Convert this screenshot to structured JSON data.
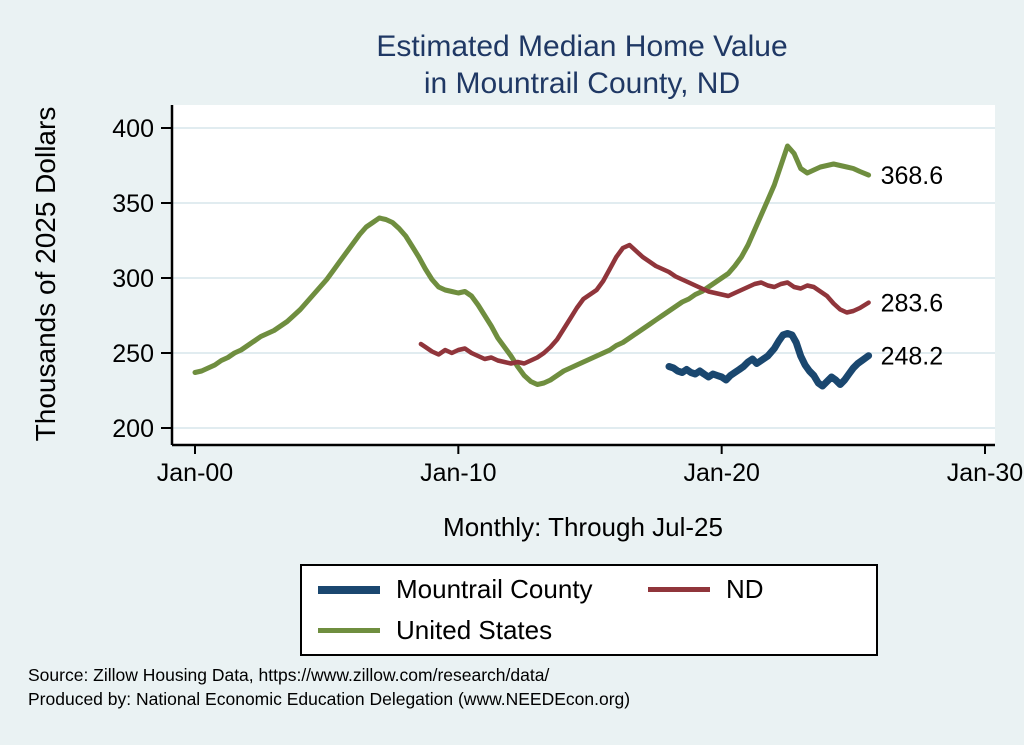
{
  "title": {
    "line1": "Estimated Median Home Value",
    "line2": "in Mountrail County, ND"
  },
  "subtitle": "Monthly: Through Jul-25",
  "y_axis_label": "Thousands of 2025 Dollars",
  "end_labels": {
    "united_states": "368.6",
    "nd": "283.6",
    "mountrail_county": "248.2"
  },
  "legend": {
    "items": [
      {
        "label": "Mountrail County",
        "color": "#1a476f",
        "swatch_height": 8
      },
      {
        "label": "ND",
        "color": "#90353b",
        "swatch_height": 5
      },
      {
        "label": "United States",
        "color": "#6f8e3f",
        "swatch_height": 5
      }
    ]
  },
  "notes": {
    "line1": "Source: Zillow Housing Data, https://www.zillow.com/research/data/",
    "line2": "Produced by: National Economic Education Delegation (www.NEEDEcon.org)"
  },
  "colors": {
    "background": "#eaf2f3",
    "plot_background": "#ffffff",
    "gridline": "#cfe0e8",
    "axis": "#000000",
    "title": "#1f3864",
    "mountrail_county": "#1a476f",
    "nd": "#90353b",
    "united_states": "#6f8e3f"
  },
  "chart_data": {
    "type": "line",
    "title": "Estimated Median Home Value in Mountrail County, ND",
    "subtitle": "Monthly: Through Jul-25",
    "xlabel": "",
    "ylabel": "Thousands of 2025 Dollars",
    "xlim": [
      2000,
      2030
    ],
    "ylim": [
      200,
      400
    ],
    "xticks": [
      2000,
      2010,
      2020,
      2030
    ],
    "xtick_labels": [
      "Jan-00",
      "Jan-10",
      "Jan-20",
      "Jan-30"
    ],
    "yticks": [
      200,
      250,
      300,
      350,
      400
    ],
    "ytick_labels": [
      "200",
      "250",
      "300",
      "350",
      "400"
    ],
    "grid": "horizontal",
    "legend_position": "below",
    "series": [
      {
        "id": "united_states",
        "name": "United States",
        "color": "#6f8e3f",
        "width": 5,
        "end_label": "368.6",
        "points": [
          [
            2000.0,
            237
          ],
          [
            2000.25,
            238
          ],
          [
            2000.5,
            240
          ],
          [
            2000.75,
            242
          ],
          [
            2001.0,
            245
          ],
          [
            2001.25,
            247
          ],
          [
            2001.5,
            250
          ],
          [
            2001.75,
            252
          ],
          [
            2002.0,
            255
          ],
          [
            2002.25,
            258
          ],
          [
            2002.5,
            261
          ],
          [
            2002.75,
            263
          ],
          [
            2003.0,
            265
          ],
          [
            2003.25,
            268
          ],
          [
            2003.5,
            271
          ],
          [
            2003.75,
            275
          ],
          [
            2004.0,
            279
          ],
          [
            2004.25,
            284
          ],
          [
            2004.5,
            289
          ],
          [
            2004.75,
            294
          ],
          [
            2005.0,
            299
          ],
          [
            2005.25,
            305
          ],
          [
            2005.5,
            311
          ],
          [
            2005.75,
            317
          ],
          [
            2006.0,
            323
          ],
          [
            2006.25,
            329
          ],
          [
            2006.5,
            334
          ],
          [
            2006.75,
            337
          ],
          [
            2007.0,
            340
          ],
          [
            2007.25,
            339
          ],
          [
            2007.5,
            337
          ],
          [
            2007.75,
            333
          ],
          [
            2008.0,
            328
          ],
          [
            2008.25,
            321
          ],
          [
            2008.5,
            314
          ],
          [
            2008.75,
            306
          ],
          [
            2009.0,
            299
          ],
          [
            2009.25,
            294
          ],
          [
            2009.5,
            292
          ],
          [
            2009.75,
            291
          ],
          [
            2010.0,
            290
          ],
          [
            2010.25,
            291
          ],
          [
            2010.5,
            288
          ],
          [
            2010.75,
            282
          ],
          [
            2011.0,
            275
          ],
          [
            2011.25,
            268
          ],
          [
            2011.5,
            260
          ],
          [
            2011.75,
            254
          ],
          [
            2012.0,
            248
          ],
          [
            2012.25,
            241
          ],
          [
            2012.5,
            235
          ],
          [
            2012.75,
            231
          ],
          [
            2013.0,
            229
          ],
          [
            2013.25,
            230
          ],
          [
            2013.5,
            232
          ],
          [
            2013.75,
            235
          ],
          [
            2014.0,
            238
          ],
          [
            2014.25,
            240
          ],
          [
            2014.5,
            242
          ],
          [
            2014.75,
            244
          ],
          [
            2015.0,
            246
          ],
          [
            2015.25,
            248
          ],
          [
            2015.5,
            250
          ],
          [
            2015.75,
            252
          ],
          [
            2016.0,
            255
          ],
          [
            2016.25,
            257
          ],
          [
            2016.5,
            260
          ],
          [
            2016.75,
            263
          ],
          [
            2017.0,
            266
          ],
          [
            2017.25,
            269
          ],
          [
            2017.5,
            272
          ],
          [
            2017.75,
            275
          ],
          [
            2018.0,
            278
          ],
          [
            2018.25,
            281
          ],
          [
            2018.5,
            284
          ],
          [
            2018.75,
            286
          ],
          [
            2019.0,
            289
          ],
          [
            2019.25,
            291
          ],
          [
            2019.5,
            294
          ],
          [
            2019.75,
            297
          ],
          [
            2020.0,
            300
          ],
          [
            2020.25,
            303
          ],
          [
            2020.5,
            308
          ],
          [
            2020.75,
            314
          ],
          [
            2021.0,
            322
          ],
          [
            2021.25,
            332
          ],
          [
            2021.5,
            342
          ],
          [
            2021.75,
            352
          ],
          [
            2022.0,
            362
          ],
          [
            2022.25,
            375
          ],
          [
            2022.5,
            388
          ],
          [
            2022.75,
            383
          ],
          [
            2023.0,
            373
          ],
          [
            2023.25,
            370
          ],
          [
            2023.5,
            372
          ],
          [
            2023.75,
            374
          ],
          [
            2024.0,
            375
          ],
          [
            2024.25,
            376
          ],
          [
            2024.5,
            375
          ],
          [
            2024.75,
            374
          ],
          [
            2025.0,
            373
          ],
          [
            2025.25,
            371
          ],
          [
            2025.58,
            368.6
          ]
        ]
      },
      {
        "id": "nd",
        "name": "ND",
        "color": "#90353b",
        "width": 4.5,
        "end_label": "283.6",
        "points": [
          [
            2008.58,
            256
          ],
          [
            2008.75,
            254
          ],
          [
            2009.0,
            251
          ],
          [
            2009.25,
            249
          ],
          [
            2009.5,
            252
          ],
          [
            2009.75,
            250
          ],
          [
            2010.0,
            252
          ],
          [
            2010.25,
            253
          ],
          [
            2010.5,
            250
          ],
          [
            2010.75,
            248
          ],
          [
            2011.0,
            246
          ],
          [
            2011.25,
            247
          ],
          [
            2011.5,
            245
          ],
          [
            2011.75,
            244
          ],
          [
            2012.0,
            243
          ],
          [
            2012.25,
            244
          ],
          [
            2012.5,
            243
          ],
          [
            2012.75,
            245
          ],
          [
            2013.0,
            247
          ],
          [
            2013.25,
            250
          ],
          [
            2013.5,
            254
          ],
          [
            2013.75,
            259
          ],
          [
            2014.0,
            266
          ],
          [
            2014.25,
            273
          ],
          [
            2014.5,
            280
          ],
          [
            2014.75,
            286
          ],
          [
            2015.0,
            289
          ],
          [
            2015.25,
            292
          ],
          [
            2015.5,
            298
          ],
          [
            2015.75,
            306
          ],
          [
            2016.0,
            314
          ],
          [
            2016.25,
            320
          ],
          [
            2016.5,
            322
          ],
          [
            2016.75,
            318
          ],
          [
            2017.0,
            314
          ],
          [
            2017.25,
            311
          ],
          [
            2017.5,
            308
          ],
          [
            2017.75,
            306
          ],
          [
            2018.0,
            304
          ],
          [
            2018.25,
            301
          ],
          [
            2018.5,
            299
          ],
          [
            2018.75,
            297
          ],
          [
            2019.0,
            295
          ],
          [
            2019.25,
            293
          ],
          [
            2019.5,
            291
          ],
          [
            2019.75,
            290
          ],
          [
            2020.0,
            289
          ],
          [
            2020.25,
            288
          ],
          [
            2020.5,
            290
          ],
          [
            2020.75,
            292
          ],
          [
            2021.0,
            294
          ],
          [
            2021.25,
            296
          ],
          [
            2021.5,
            297
          ],
          [
            2021.75,
            295
          ],
          [
            2022.0,
            294
          ],
          [
            2022.25,
            296
          ],
          [
            2022.5,
            297
          ],
          [
            2022.75,
            294
          ],
          [
            2023.0,
            293
          ],
          [
            2023.25,
            295
          ],
          [
            2023.5,
            294
          ],
          [
            2023.75,
            291
          ],
          [
            2024.0,
            288
          ],
          [
            2024.25,
            283
          ],
          [
            2024.5,
            279
          ],
          [
            2024.75,
            277
          ],
          [
            2025.0,
            278
          ],
          [
            2025.25,
            280
          ],
          [
            2025.58,
            283.6
          ]
        ]
      },
      {
        "id": "mountrail_county",
        "name": "Mountrail County",
        "color": "#1a476f",
        "width": 7,
        "end_label": "248.2",
        "points": [
          [
            2018.0,
            241
          ],
          [
            2018.17,
            240
          ],
          [
            2018.33,
            238
          ],
          [
            2018.5,
            237
          ],
          [
            2018.67,
            239
          ],
          [
            2018.83,
            237
          ],
          [
            2019.0,
            236
          ],
          [
            2019.17,
            238
          ],
          [
            2019.33,
            236
          ],
          [
            2019.5,
            234
          ],
          [
            2019.67,
            236
          ],
          [
            2019.83,
            235
          ],
          [
            2020.0,
            234
          ],
          [
            2020.17,
            232
          ],
          [
            2020.33,
            235
          ],
          [
            2020.5,
            237
          ],
          [
            2020.67,
            239
          ],
          [
            2020.83,
            241
          ],
          [
            2021.0,
            244
          ],
          [
            2021.17,
            246
          ],
          [
            2021.33,
            243
          ],
          [
            2021.5,
            245
          ],
          [
            2021.75,
            248
          ],
          [
            2022.0,
            253
          ],
          [
            2022.17,
            258
          ],
          [
            2022.33,
            262
          ],
          [
            2022.5,
            263
          ],
          [
            2022.67,
            262
          ],
          [
            2022.83,
            257
          ],
          [
            2023.0,
            248
          ],
          [
            2023.17,
            242
          ],
          [
            2023.33,
            238
          ],
          [
            2023.5,
            235
          ],
          [
            2023.67,
            230
          ],
          [
            2023.83,
            228
          ],
          [
            2024.0,
            231
          ],
          [
            2024.17,
            234
          ],
          [
            2024.33,
            232
          ],
          [
            2024.5,
            229
          ],
          [
            2024.67,
            232
          ],
          [
            2024.83,
            236
          ],
          [
            2025.0,
            240
          ],
          [
            2025.17,
            243
          ],
          [
            2025.33,
            245
          ],
          [
            2025.58,
            248.2
          ]
        ]
      }
    ]
  }
}
